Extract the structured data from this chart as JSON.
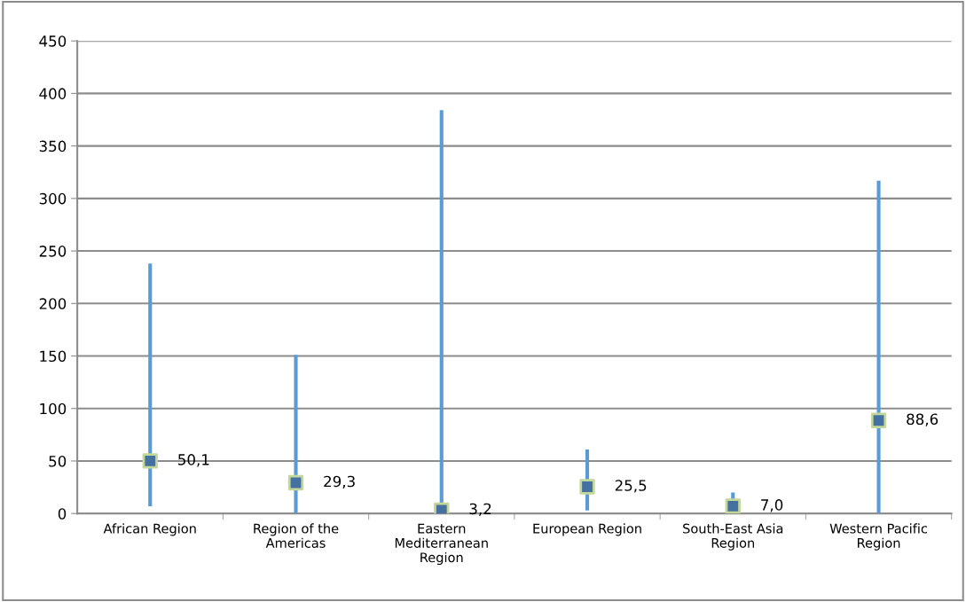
{
  "chart_data": {
    "type": "bar",
    "categories": [
      "African Region",
      "Region of the\nAmericas",
      "Eastern\nMediterranean\nRegion",
      "European Region",
      "South-East Asia\nRegion",
      "Western Pacific\nRegion"
    ],
    "series": [
      {
        "color": "#5b9bd5",
        "values": [
          231,
          151,
          383,
          58,
          19,
          317
        ],
        "base": [
          7,
          0,
          1,
          3,
          1,
          0
        ]
      },
      {
        "type": "scatter",
        "color": "#44719f",
        "values": [
          50.1,
          29.3,
          3.2,
          25.5,
          7.0,
          88.6
        ],
        "value_labels": [
          "50,1",
          "29,3",
          "3,2",
          "25,5",
          "7,0",
          "88,6"
        ]
      }
    ],
    "ylim": [
      0,
      450
    ],
    "yticks": [
      0,
      50,
      100,
      150,
      200,
      250,
      300,
      350,
      400,
      450
    ],
    "grid": "y"
  }
}
